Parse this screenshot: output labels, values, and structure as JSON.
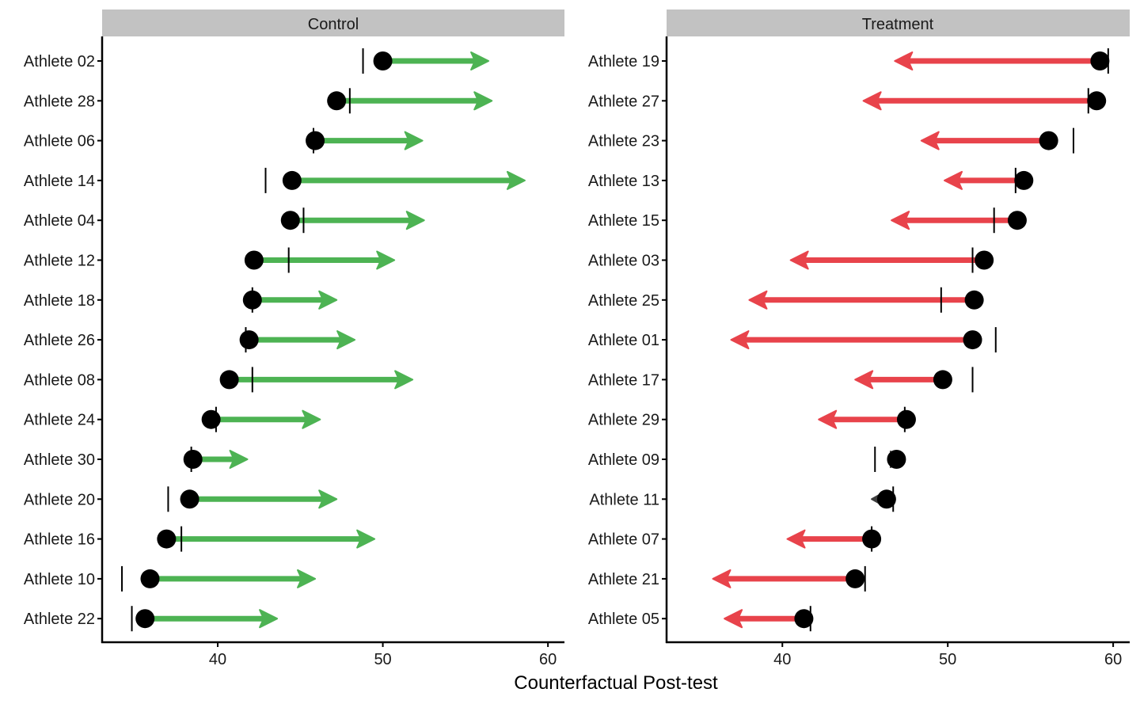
{
  "chart_data": {
    "type": "dumbbell-arrow",
    "xlabel": "Counterfactual Post-test",
    "ylabel": "",
    "xlim": [
      33,
      61
    ],
    "x_ticks": [
      40,
      50,
      60
    ],
    "grid": false,
    "legend": "none",
    "colors": {
      "control_arrow": "#4DB353",
      "treatment_arrow": "#E8434B",
      "small_arrow": "#3F3F3F",
      "point": "#000000",
      "tick": "#000000",
      "strip_fill": "#C2C2C2",
      "axis": "#000000"
    },
    "panels": [
      {
        "name": "Control",
        "athletes": [
          {
            "label": "Athlete 02",
            "observed": 50.0,
            "counterfactual": 56.4,
            "reference": 48.8
          },
          {
            "label": "Athlete 28",
            "observed": 47.2,
            "counterfactual": 56.6,
            "reference": 48.0
          },
          {
            "label": "Athlete 06",
            "observed": 45.9,
            "counterfactual": 52.4,
            "reference": 45.8
          },
          {
            "label": "Athlete 14",
            "observed": 44.5,
            "counterfactual": 58.6,
            "reference": 42.9
          },
          {
            "label": "Athlete 04",
            "observed": 44.4,
            "counterfactual": 52.5,
            "reference": 45.2
          },
          {
            "label": "Athlete 12",
            "observed": 42.2,
            "counterfactual": 50.7,
            "reference": 44.3
          },
          {
            "label": "Athlete 18",
            "observed": 42.1,
            "counterfactual": 47.2,
            "reference": 42.1
          },
          {
            "label": "Athlete 26",
            "observed": 41.9,
            "counterfactual": 48.3,
            "reference": 41.7
          },
          {
            "label": "Athlete 08",
            "observed": 40.7,
            "counterfactual": 51.8,
            "reference": 42.1
          },
          {
            "label": "Athlete 24",
            "observed": 39.6,
            "counterfactual": 46.2,
            "reference": 39.9
          },
          {
            "label": "Athlete 30",
            "observed": 38.5,
            "counterfactual": 41.8,
            "reference": 38.4
          },
          {
            "label": "Athlete 20",
            "observed": 38.3,
            "counterfactual": 47.2,
            "reference": 37.0
          },
          {
            "label": "Athlete 16",
            "observed": 36.9,
            "counterfactual": 49.5,
            "reference": 37.8
          },
          {
            "label": "Athlete 10",
            "observed": 35.9,
            "counterfactual": 45.9,
            "reference": 34.2
          },
          {
            "label": "Athlete 22",
            "observed": 35.6,
            "counterfactual": 43.6,
            "reference": 34.8
          }
        ]
      },
      {
        "name": "Treatment",
        "athletes": [
          {
            "label": "Athlete 19",
            "observed": 59.2,
            "counterfactual": 46.8,
            "reference": 59.7
          },
          {
            "label": "Athlete 27",
            "observed": 59.0,
            "counterfactual": 44.9,
            "reference": 58.5
          },
          {
            "label": "Athlete 23",
            "observed": 56.1,
            "counterfactual": 48.4,
            "reference": 57.6
          },
          {
            "label": "Athlete 13",
            "observed": 54.6,
            "counterfactual": 49.8,
            "reference": 54.1
          },
          {
            "label": "Athlete 15",
            "observed": 54.2,
            "counterfactual": 46.6,
            "reference": 52.8
          },
          {
            "label": "Athlete 03",
            "observed": 52.2,
            "counterfactual": 40.5,
            "reference": 51.5
          },
          {
            "label": "Athlete 25",
            "observed": 51.6,
            "counterfactual": 38.0,
            "reference": 49.6
          },
          {
            "label": "Athlete 01",
            "observed": 51.5,
            "counterfactual": 36.9,
            "reference": 52.9
          },
          {
            "label": "Athlete 17",
            "observed": 49.7,
            "counterfactual": 44.4,
            "reference": 51.5
          },
          {
            "label": "Athlete 29",
            "observed": 47.5,
            "counterfactual": 42.2,
            "reference": 47.4
          },
          {
            "label": "Athlete 09",
            "observed": 46.9,
            "counterfactual": 47.4,
            "reference": 45.6
          },
          {
            "label": "Athlete 11",
            "observed": 46.3,
            "counterfactual": 45.4,
            "reference": 46.7
          },
          {
            "label": "Athlete 07",
            "observed": 45.4,
            "counterfactual": 40.3,
            "reference": 45.4
          },
          {
            "label": "Athlete 21",
            "observed": 44.4,
            "counterfactual": 35.8,
            "reference": 45.0
          },
          {
            "label": "Athlete 05",
            "observed": 41.3,
            "counterfactual": 36.5,
            "reference": 41.7
          }
        ]
      }
    ]
  }
}
